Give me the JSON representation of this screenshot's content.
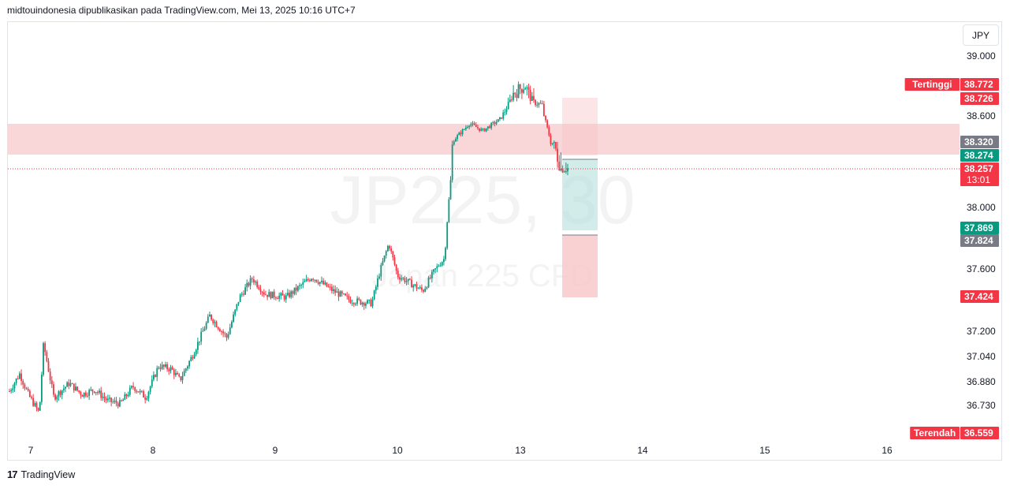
{
  "header": {
    "text": "midtouindonesia dipublikasikan pada TradingView.com, Mei 13, 2025 10:16 UTC+7"
  },
  "footer": {
    "brand": "TradingView"
  },
  "currency_label": "JPY",
  "watermark": {
    "symbol": "JP225, 30",
    "name": "Japan 225 CFD"
  },
  "colors": {
    "up": "#089981",
    "down": "#f23645",
    "zone": "#f7c5c8",
    "stop": "#f23645",
    "target": "#089981",
    "label_gray": "#787b86"
  },
  "chart_data": {
    "type": "candlestick",
    "interval": "30",
    "symbol": "JP225",
    "x_tick_labels": [
      "7",
      "8",
      "9",
      "10",
      "13",
      "14",
      "15",
      "16"
    ],
    "y_tick_labels": [
      "39.000",
      "38.600",
      "38.000",
      "37.600",
      "37.200",
      "37.040",
      "36.880",
      "36.730"
    ],
    "y_ticks": [
      39000,
      38600,
      38000,
      37600,
      37200,
      37040,
      36880,
      36730
    ],
    "price_path": [
      [
        0.0,
        36820
      ],
      [
        0.12,
        36930
      ],
      [
        0.22,
        36800
      ],
      [
        0.35,
        36680
      ],
      [
        0.4,
        37120
      ],
      [
        0.52,
        36780
      ],
      [
        0.7,
        36870
      ],
      [
        0.85,
        36800
      ],
      [
        1.0,
        36830
      ],
      [
        1.15,
        36760
      ],
      [
        1.3,
        36740
      ],
      [
        1.45,
        36850
      ],
      [
        1.6,
        36780
      ],
      [
        1.75,
        36980
      ],
      [
        1.9,
        36960
      ],
      [
        2.0,
        36890
      ],
      [
        2.15,
        37050
      ],
      [
        2.35,
        37300
      ],
      [
        2.55,
        37160
      ],
      [
        2.7,
        37420
      ],
      [
        2.85,
        37540
      ],
      [
        3.0,
        37440
      ],
      [
        3.25,
        37420
      ],
      [
        3.55,
        37550
      ],
      [
        3.8,
        37460
      ],
      [
        4.0,
        37400
      ],
      [
        4.25,
        37380
      ],
      [
        4.45,
        37800
      ],
      [
        4.55,
        37560
      ],
      [
        4.7,
        37510
      ],
      [
        4.85,
        37460
      ],
      [
        5.0,
        37600
      ],
      [
        5.1,
        37680
      ],
      [
        5.2,
        38330
      ],
      [
        5.4,
        38520
      ],
      [
        5.55,
        38440
      ],
      [
        5.75,
        38560
      ],
      [
        5.9,
        38740
      ],
      [
        6.05,
        38770
      ],
      [
        6.15,
        38700
      ],
      [
        6.25,
        38680
      ],
      [
        6.35,
        38330
      ],
      [
        6.48,
        38250
      ],
      [
        6.55,
        38257
      ]
    ],
    "candles_approx": 330,
    "highest": {
      "label": "Tertinggi",
      "value": "38.772"
    },
    "lowest": {
      "label": "Terendah",
      "value": "36.559"
    },
    "resistance_zone": {
      "from": 38320,
      "to": 38520
    },
    "current_price": {
      "value": "38.257",
      "countdown": "13:01"
    },
    "position": {
      "type": "long",
      "entry": {
        "value": 38274,
        "label": "38.274"
      },
      "target": {
        "value": 37869,
        "label": "37.869"
      },
      "stop_upper": {
        "value": 38726,
        "label": "38.726"
      },
      "stop_lower": {
        "value": 37424,
        "label": "37.424"
      },
      "zone_top": {
        "value": 38320,
        "label": "38.320"
      },
      "zone_mid": {
        "value": 37824,
        "label": "37.824"
      }
    }
  }
}
